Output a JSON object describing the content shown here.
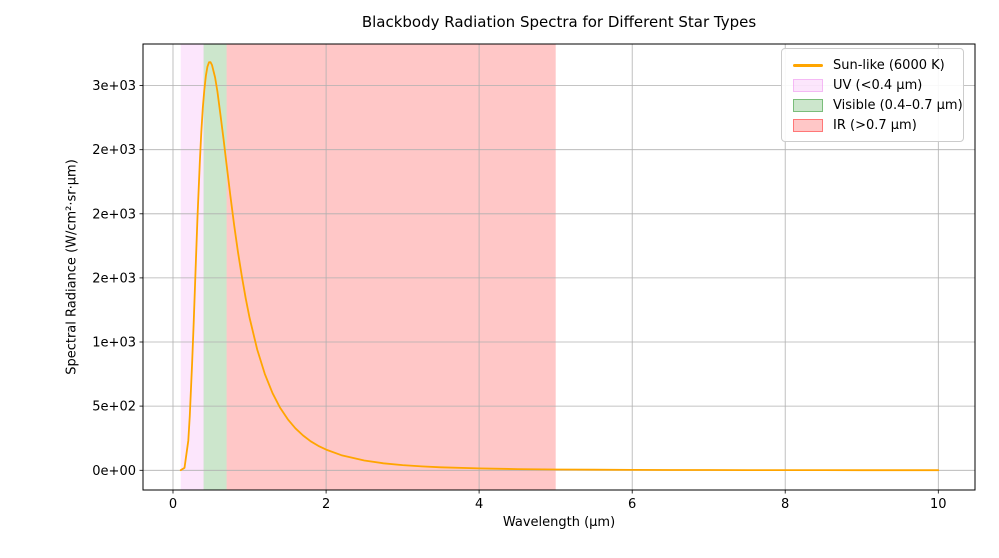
{
  "chart_data": {
    "type": "line",
    "title": "Blackbody Radiation Spectra for Different Star Types",
    "xlabel": "Wavelength (μm)",
    "ylabel": "Spectral Radiance (W/cm²·sr·μm)",
    "xlim": [
      -0.392,
      10.48
    ],
    "ylim": [
      -154,
      3324
    ],
    "x_ticks": [
      0,
      2,
      4,
      6,
      8,
      10
    ],
    "x_tick_labels": [
      "0",
      "2",
      "4",
      "6",
      "8",
      "10"
    ],
    "y_ticks": [
      0,
      500,
      1000,
      1500,
      2000,
      2500,
      3000
    ],
    "y_tick_labels": [
      "0e+00",
      "5e+02",
      "1e+03",
      "2e+03",
      "2e+03",
      "2e+03",
      "3e+03"
    ],
    "grid": true,
    "grid_color": "#b0b0b0",
    "spine_color": "#000000",
    "legend_position": "upper right",
    "series": [
      {
        "name": "Sun-like (6000 K)",
        "temperature_K": 6000,
        "color": "#ffa500",
        "peak_wavelength_um": 0.48,
        "peak_radiance": 3184,
        "points": [
          [
            0.1,
            0.05
          ],
          [
            0.15,
            18
          ],
          [
            0.2,
            231
          ],
          [
            0.22,
            427
          ],
          [
            0.25,
            833
          ],
          [
            0.27,
            1151
          ],
          [
            0.3,
            1655
          ],
          [
            0.32,
            1975
          ],
          [
            0.35,
            2399
          ],
          [
            0.37,
            2637
          ],
          [
            0.39,
            2825
          ],
          [
            0.41,
            2972
          ],
          [
            0.43,
            3077
          ],
          [
            0.45,
            3146
          ],
          [
            0.47,
            3181
          ],
          [
            0.49,
            3182
          ],
          [
            0.51,
            3160
          ],
          [
            0.55,
            3063
          ],
          [
            0.58,
            2954
          ],
          [
            0.62,
            2775
          ],
          [
            0.66,
            2585
          ],
          [
            0.7,
            2382
          ],
          [
            0.75,
            2139
          ],
          [
            0.8,
            1909
          ],
          [
            0.85,
            1700
          ],
          [
            0.9,
            1510
          ],
          [
            0.95,
            1341
          ],
          [
            1.0,
            1191
          ],
          [
            1.1,
            942
          ],
          [
            1.2,
            751
          ],
          [
            1.3,
            602
          ],
          [
            1.4,
            487
          ],
          [
            1.5,
            397
          ],
          [
            1.6,
            327
          ],
          [
            1.7,
            271
          ],
          [
            1.8,
            226
          ],
          [
            1.9,
            190
          ],
          [
            2.0,
            161
          ],
          [
            2.2,
            117
          ],
          [
            2.5,
            76
          ],
          [
            2.75,
            54
          ],
          [
            3.0,
            40
          ],
          [
            3.25,
            30
          ],
          [
            3.5,
            23
          ],
          [
            4.0,
            14.2
          ],
          [
            4.5,
            9.2
          ],
          [
            5.0,
            6.2
          ],
          [
            5.5,
            4.3
          ],
          [
            6.0,
            3.1
          ],
          [
            6.5,
            2.3
          ],
          [
            7.0,
            1.7
          ],
          [
            7.5,
            1.3
          ],
          [
            8.0,
            1.0
          ],
          [
            8.5,
            0.8
          ],
          [
            9.0,
            0.7
          ],
          [
            9.5,
            0.5
          ],
          [
            10.0,
            0.4
          ]
        ]
      }
    ],
    "bands": [
      {
        "id": "uv",
        "name": "UV (<0.4 μm)",
        "x_start": 0.1,
        "x_end": 0.4,
        "color": "#ee82ee",
        "alpha": 0.2
      },
      {
        "id": "visible",
        "name": "Visible (0.4–0.7 μm)",
        "x_start": 0.4,
        "x_end": 0.7,
        "color": "#008000",
        "alpha": 0.2
      },
      {
        "id": "ir",
        "name": "IR (>0.7 μm)",
        "x_start": 0.7,
        "x_end": 5.0,
        "color": "#ff0000",
        "alpha": 0.22
      }
    ],
    "legend": [
      {
        "label": "Sun-like (6000 K)",
        "swatch": "line",
        "color": "#ffa500",
        "edge": "#ffa500"
      },
      {
        "label": "UV (<0.4 μm)",
        "swatch": "patch",
        "color": "rgba(238,130,238,0.2)",
        "edge": "rgba(238,130,238,0.45)"
      },
      {
        "label": "Visible (0.4–0.7 μm)",
        "swatch": "patch",
        "color": "rgba(0,128,0,0.2)",
        "edge": "rgba(0,128,0,0.4)"
      },
      {
        "label": "IR (>0.7 μm)",
        "swatch": "patch",
        "color": "rgba(255,0,0,0.22)",
        "edge": "rgba(255,0,0,0.4)"
      }
    ]
  }
}
